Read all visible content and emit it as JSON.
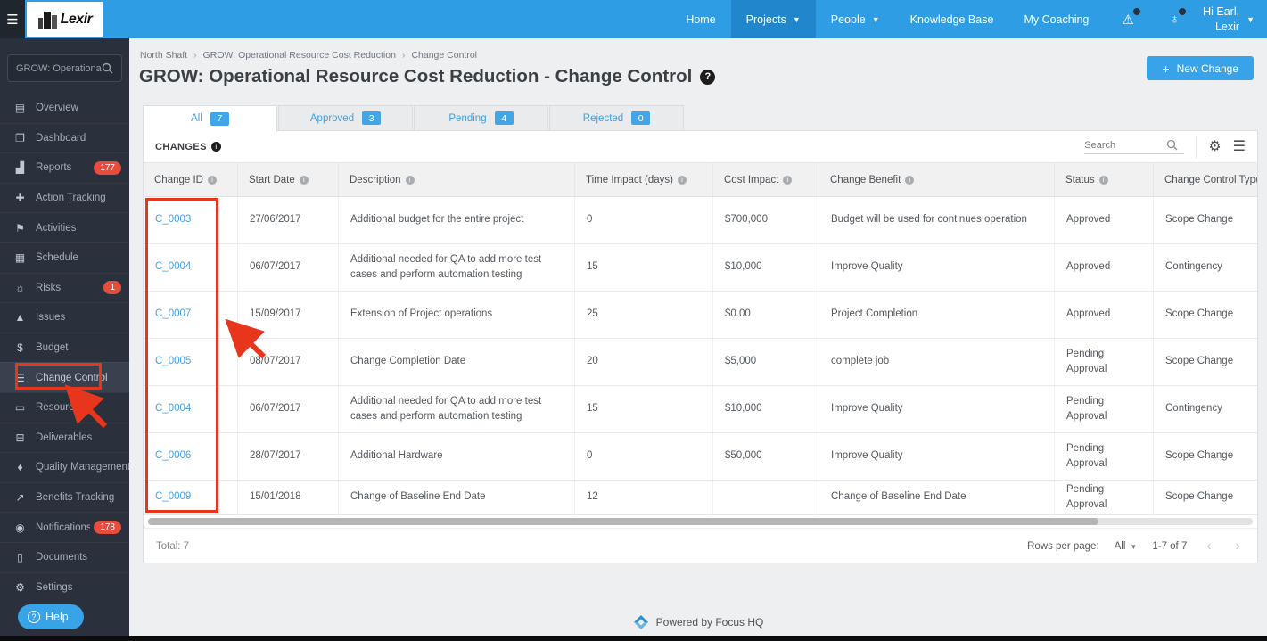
{
  "colors": {
    "accent": "#38a3e8",
    "nav_blue": "#2f9de4",
    "sidebar_bg": "#2b313c",
    "badge_red": "#e74c3c",
    "annotation_red": "#e8361c",
    "link_blue": "#45a2e2"
  },
  "topnav": {
    "logo_text": "Lexir",
    "items": [
      {
        "label": "Home",
        "active": false,
        "chevron": false
      },
      {
        "label": "Projects",
        "active": true,
        "chevron": true
      },
      {
        "label": "People",
        "active": false,
        "chevron": true
      },
      {
        "label": "Knowledge Base",
        "active": false,
        "chevron": false
      },
      {
        "label": "My Coaching",
        "active": false,
        "chevron": false
      }
    ],
    "icons": [
      {
        "name": "alert-icon",
        "glyph": "⚠"
      },
      {
        "name": "globe-icon",
        "glyph": "♁"
      }
    ],
    "user_greeting": "Hi Earl,",
    "user_name": "Lexir"
  },
  "sidebar": {
    "project_selector": "GROW: Operationa...",
    "items": [
      {
        "label": "Overview",
        "icon": "overview-icon",
        "glyph": "▤"
      },
      {
        "label": "Dashboard",
        "icon": "dashboard-icon",
        "glyph": "❐"
      },
      {
        "label": "Reports",
        "icon": "reports-icon",
        "glyph": "▟",
        "badge": "177"
      },
      {
        "label": "Action Tracking",
        "icon": "action-tracking-icon",
        "glyph": "✚"
      },
      {
        "label": "Activities",
        "icon": "activities-icon",
        "glyph": "⚑"
      },
      {
        "label": "Schedule",
        "icon": "schedule-icon",
        "glyph": "▦"
      },
      {
        "label": "Risks",
        "icon": "risks-icon",
        "glyph": "☼",
        "badge": "1"
      },
      {
        "label": "Issues",
        "icon": "issues-icon",
        "glyph": "▲"
      },
      {
        "label": "Budget",
        "icon": "budget-icon",
        "glyph": "$"
      },
      {
        "label": "Change Control",
        "icon": "change-control-icon",
        "glyph": "☰",
        "active": true
      },
      {
        "label": "Resourcing",
        "icon": "resourcing-icon",
        "glyph": "▭"
      },
      {
        "label": "Deliverables",
        "icon": "deliverables-icon",
        "glyph": "⊟"
      },
      {
        "label": "Quality Management",
        "icon": "quality-management-icon",
        "glyph": "♦"
      },
      {
        "label": "Benefits Tracking",
        "icon": "benefits-tracking-icon",
        "glyph": "↗"
      },
      {
        "label": "Notifications",
        "icon": "notifications-icon",
        "glyph": "◉",
        "badge": "178"
      },
      {
        "label": "Documents",
        "icon": "documents-icon",
        "glyph": "▯"
      },
      {
        "label": "Settings",
        "icon": "settings-icon",
        "glyph": "⚙"
      }
    ],
    "help_label": "Help"
  },
  "breadcrumb": [
    "North Shaft",
    "GROW: Operational Resource Cost Reduction",
    "Change Control"
  ],
  "page": {
    "title": "GROW: Operational Resource Cost Reduction - Change Control",
    "new_change_label": "New Change"
  },
  "tabs": [
    {
      "label": "All",
      "count": "7",
      "active": true
    },
    {
      "label": "Approved",
      "count": "3",
      "active": false
    },
    {
      "label": "Pending",
      "count": "4",
      "active": false
    },
    {
      "label": "Rejected",
      "count": "0",
      "active": false
    }
  ],
  "table": {
    "section_title": "CHANGES",
    "search_placeholder": "Search",
    "columns": [
      "Change ID",
      "Start Date",
      "Description",
      "Time Impact (days)",
      "Cost Impact",
      "Change Benefit",
      "Status",
      "Change Control Type"
    ],
    "rows": [
      {
        "change_id": "C_0003",
        "start_date": "27/06/2017",
        "description": "Additional budget for the entire project",
        "time_impact": "0",
        "cost_impact": "$700,000",
        "change_benefit": "Budget will be used for continues operation",
        "status": "Approved",
        "change_control_type": "Scope Change"
      },
      {
        "change_id": "C_0004",
        "start_date": "06/07/2017",
        "description": "Additional needed for QA to add more test cases and perform automation testing",
        "time_impact": "15",
        "cost_impact": "$10,000",
        "change_benefit": "Improve Quality",
        "status": "Approved",
        "change_control_type": "Contingency"
      },
      {
        "change_id": "C_0007",
        "start_date": "15/09/2017",
        "description": "Extension of Project operations",
        "time_impact": "25",
        "cost_impact": "$0.00",
        "change_benefit": "Project Completion",
        "status": "Approved",
        "change_control_type": "Scope Change"
      },
      {
        "change_id": "C_0005",
        "start_date": "08/07/2017",
        "description": "Change Completion Date",
        "time_impact": "20",
        "cost_impact": "$5,000",
        "change_benefit": "complete job",
        "status": "Pending Approval",
        "change_control_type": "Scope Change"
      },
      {
        "change_id": "C_0004",
        "start_date": "06/07/2017",
        "description": "Additional needed for QA to add more test cases and perform automation testing",
        "time_impact": "15",
        "cost_impact": "$10,000",
        "change_benefit": "Improve Quality",
        "status": "Pending Approval",
        "change_control_type": "Contingency"
      },
      {
        "change_id": "C_0006",
        "start_date": "28/07/2017",
        "description": "Additional Hardware",
        "time_impact": "0",
        "cost_impact": "$50,000",
        "change_benefit": "Improve Quality",
        "status": "Pending Approval",
        "change_control_type": "Scope Change"
      },
      {
        "change_id": "C_0009",
        "start_date": "15/01/2018",
        "description": "Change of Baseline End Date",
        "time_impact": "12",
        "cost_impact": "",
        "change_benefit": "Change of Baseline End Date",
        "status": "Pending Approval",
        "change_control_type": "Scope Change"
      }
    ],
    "footer": {
      "total": "Total: 7",
      "rows_per_page_label": "Rows per page:",
      "rows_per_page_value": "All",
      "range": "1-7 of 7"
    }
  },
  "powered_by": "Powered by Focus HQ"
}
